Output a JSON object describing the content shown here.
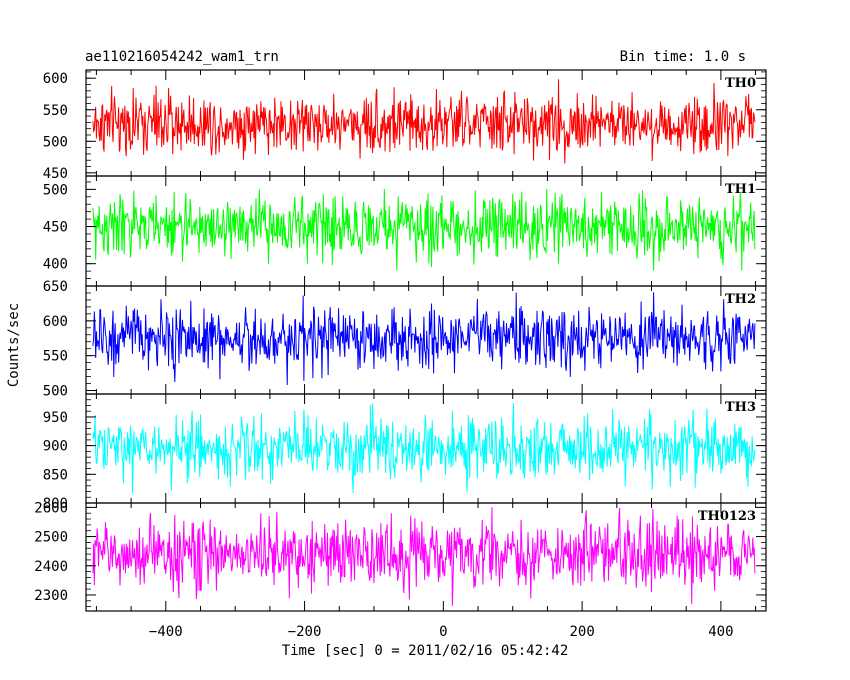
{
  "header": {
    "title": "ae110216054242_wam1_trn",
    "bin_time": "Bin time: 1.0 s"
  },
  "chart_data": {
    "type": "line",
    "xlabel": "Time [sec] 0 = 2011/02/16 05:42:42",
    "ylabel": "Counts/sec",
    "xlim": [
      -515,
      465
    ],
    "data_x_range": [
      -505,
      449
    ],
    "bin_seconds": 1.0,
    "x_ticks": [
      -400,
      -200,
      0,
      200,
      400
    ],
    "panels": [
      {
        "name": "TH0",
        "color": "#ff0000",
        "ylim": [
          445,
          613
        ],
        "y_ticks": [
          450,
          500,
          550,
          600
        ],
        "y_tick_labels": [
          "450",
          "500",
          "550",
          "600"
        ],
        "mean": 528,
        "range": [
          462,
          610
        ]
      },
      {
        "name": "TH1",
        "color": "#00ff00",
        "ylim": [
          370,
          518
        ],
        "y_ticks": [
          400,
          450,
          500
        ],
        "y_tick_labels": [
          "400",
          "450",
          "500"
        ],
        "mean": 450,
        "range": [
          385,
          510
        ]
      },
      {
        "name": "TH2",
        "color": "#0000ff",
        "ylim": [
          495,
          650
        ],
        "y_ticks": [
          500,
          550,
          600,
          650
        ],
        "y_tick_labels": [
          "500",
          "550",
          "600",
          "650"
        ],
        "mean": 575,
        "range": [
          505,
          645
        ]
      },
      {
        "name": "TH3",
        "color": "#00ffff",
        "ylim": [
          800,
          990
        ],
        "y_ticks": [
          800,
          850,
          900,
          950
        ],
        "y_tick_labels": [
          "800",
          "850",
          "900",
          "950"
        ],
        "mean": 895,
        "range": [
          808,
          975
        ]
      },
      {
        "name": "TH0123",
        "color": "#ff00ff",
        "ylim": [
          2245,
          2615
        ],
        "y_ticks": [
          2300,
          2400,
          2500,
          2600
        ],
        "y_tick_labels": [
          "2300",
          "2400",
          "2500",
          "2600"
        ],
        "mean": 2440,
        "range": [
          2250,
          2610
        ]
      }
    ]
  }
}
